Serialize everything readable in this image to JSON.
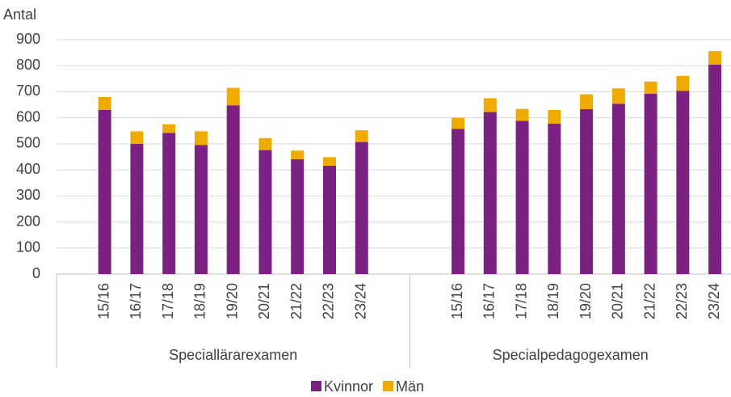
{
  "chart_data": {
    "type": "stacked-bar",
    "y_label": "Antal",
    "groups": [
      {
        "name": "Speciallärarexamen",
        "categories": [
          "15/16",
          "16/17",
          "17/18",
          "18/19",
          "19/20",
          "20/21",
          "21/22",
          "22/23",
          "23/24"
        ]
      },
      {
        "name": "Specialpedagogexamen",
        "categories": [
          "15/16",
          "16/17",
          "17/18",
          "18/19",
          "19/20",
          "20/21",
          "21/22",
          "22/23",
          "23/24"
        ]
      }
    ],
    "series": [
      {
        "name": "Kvinnor",
        "color": "#7a2182",
        "values": [
          630,
          500,
          542,
          495,
          648,
          476,
          441,
          416,
          507,
          557,
          622,
          588,
          578,
          633,
          654,
          692,
          703,
          804
        ]
      },
      {
        "name": "Män",
        "color": "#f0ab00",
        "values": [
          50,
          48,
          33,
          53,
          67,
          46,
          33,
          33,
          45,
          43,
          53,
          46,
          52,
          57,
          59,
          47,
          58,
          52
        ]
      }
    ],
    "ylim": [
      0,
      900
    ],
    "yticks": [
      0,
      100,
      200,
      300,
      400,
      500,
      600,
      700,
      800,
      900
    ],
    "grid": true,
    "legend": "bottom"
  }
}
